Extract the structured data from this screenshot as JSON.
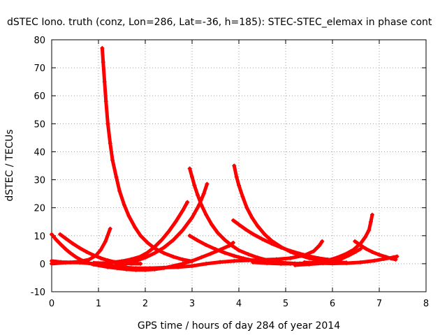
{
  "chart_data": {
    "type": "scatter",
    "title": "dSTEC Iono. truth (conz, Lon=286, Lat=-36, h=185): STEC-STEC_elemax in phase cont",
    "xlabel": "GPS time / hours of day 284 of year 2014",
    "ylabel": "dSTEC  / TECUs",
    "xlim": [
      0,
      8
    ],
    "ylim": [
      -10,
      80
    ],
    "xticks": [
      "0",
      "1",
      "2",
      "3",
      "4",
      "5",
      "6",
      "7",
      "8"
    ],
    "yticks": [
      "-10",
      "0",
      "10",
      "20",
      "30",
      "40",
      "50",
      "60",
      "70",
      "80"
    ],
    "grid": true,
    "marker": "plus",
    "color": "#ff0000",
    "series": [
      {
        "points": [
          [
            1.08,
            77
          ],
          [
            1.1,
            72
          ],
          [
            1.13,
            65
          ],
          [
            1.16,
            58
          ],
          [
            1.2,
            50
          ],
          [
            1.25,
            43
          ],
          [
            1.3,
            37
          ],
          [
            1.38,
            31
          ],
          [
            1.45,
            26
          ],
          [
            1.55,
            21
          ],
          [
            1.65,
            17
          ],
          [
            1.78,
            13
          ],
          [
            1.9,
            10
          ],
          [
            2.05,
            7.5
          ],
          [
            2.2,
            5.5
          ],
          [
            2.4,
            3.8
          ],
          [
            2.6,
            2.5
          ],
          [
            2.8,
            1.5
          ],
          [
            3.0,
            0.9
          ]
        ]
      },
      {
        "points": [
          [
            0,
            10.5
          ],
          [
            0.1,
            8.5
          ],
          [
            0.2,
            6.8
          ],
          [
            0.3,
            5.2
          ],
          [
            0.4,
            3.8
          ],
          [
            0.5,
            2.6
          ],
          [
            0.6,
            1.6
          ],
          [
            0.7,
            0.8
          ],
          [
            0.8,
            0.2
          ],
          [
            0.9,
            -0.3
          ],
          [
            1.0,
            -0.6
          ],
          [
            1.2,
            -1.2
          ],
          [
            1.4,
            -1.6
          ],
          [
            1.6,
            -2
          ],
          [
            1.8,
            -2.2
          ],
          [
            2.0,
            -2.2
          ],
          [
            2.2,
            -2
          ],
          [
            2.4,
            -1.5
          ],
          [
            2.6,
            -0.8
          ],
          [
            2.8,
            0
          ],
          [
            3.0,
            1
          ],
          [
            3.2,
            2.3
          ],
          [
            3.4,
            3.6
          ],
          [
            3.6,
            5
          ],
          [
            3.8,
            6.5
          ],
          [
            3.88,
            7.5
          ]
        ]
      },
      {
        "points": [
          [
            0.18,
            10.5
          ],
          [
            0.3,
            9
          ],
          [
            0.45,
            7.2
          ],
          [
            0.6,
            5.6
          ],
          [
            0.75,
            4.2
          ],
          [
            0.9,
            3
          ],
          [
            1.05,
            2
          ],
          [
            1.2,
            1.2
          ],
          [
            1.35,
            0.6
          ],
          [
            1.5,
            0.2
          ],
          [
            1.7,
            0
          ],
          [
            1.9,
            0
          ]
        ]
      },
      {
        "points": [
          [
            0,
            1
          ],
          [
            0.2,
            0.6
          ],
          [
            0.4,
            0.5
          ],
          [
            0.6,
            0.8
          ],
          [
            0.8,
            1.5
          ],
          [
            0.95,
            3
          ],
          [
            1.05,
            5
          ],
          [
            1.15,
            8
          ],
          [
            1.25,
            12.5
          ]
        ]
      },
      {
        "points": [
          [
            0,
            0
          ],
          [
            0.3,
            0.4
          ],
          [
            0.6,
            0.4
          ],
          [
            0.9,
            0
          ],
          [
            1.2,
            -0.6
          ],
          [
            1.5,
            -1.2
          ],
          [
            1.8,
            -1.6
          ],
          [
            2.1,
            -1.6
          ],
          [
            2.4,
            -1.4
          ],
          [
            2.7,
            -1.2
          ],
          [
            3.0,
            -0.8
          ],
          [
            3.3,
            0
          ],
          [
            3.6,
            0.6
          ],
          [
            3.9,
            1
          ],
          [
            4.2,
            1.2
          ],
          [
            4.5,
            1.4
          ],
          [
            4.8,
            1.6
          ],
          [
            5.1,
            2
          ],
          [
            5.4,
            3
          ],
          [
            5.6,
            4.5
          ],
          [
            5.72,
            6.5
          ],
          [
            5.78,
            8
          ]
        ]
      },
      {
        "points": [
          [
            0.9,
            0.3
          ],
          [
            1.1,
            0.2
          ],
          [
            1.3,
            0.5
          ],
          [
            1.5,
            0.9
          ],
          [
            1.7,
            1.6
          ],
          [
            1.9,
            2.6
          ],
          [
            2.05,
            4
          ],
          [
            2.2,
            6
          ],
          [
            2.35,
            8.5
          ],
          [
            2.5,
            11.5
          ],
          [
            2.65,
            15
          ],
          [
            2.8,
            19
          ],
          [
            2.9,
            22
          ]
        ]
      },
      {
        "points": [
          [
            1.2,
            -1
          ],
          [
            1.4,
            -0.6
          ],
          [
            1.6,
            0
          ],
          [
            1.8,
            1
          ],
          [
            2.0,
            2.2
          ],
          [
            2.2,
            3.8
          ],
          [
            2.4,
            5.8
          ],
          [
            2.6,
            8.5
          ],
          [
            2.8,
            12
          ],
          [
            3.0,
            16.5
          ],
          [
            3.15,
            21
          ],
          [
            3.25,
            25
          ],
          [
            3.32,
            28.5
          ]
        ]
      },
      {
        "points": [
          [
            2.95,
            34
          ],
          [
            3.0,
            31
          ],
          [
            3.05,
            28
          ],
          [
            3.12,
            24.5
          ],
          [
            3.2,
            21
          ],
          [
            3.3,
            17.5
          ],
          [
            3.42,
            14
          ],
          [
            3.55,
            11
          ],
          [
            3.7,
            8.5
          ],
          [
            3.85,
            6.5
          ],
          [
            4.0,
            4.8
          ],
          [
            4.2,
            3.4
          ],
          [
            4.4,
            2.2
          ],
          [
            4.6,
            1.3
          ],
          [
            4.8,
            0.7
          ],
          [
            5.0,
            0.3
          ],
          [
            5.2,
            0.1
          ]
        ]
      },
      {
        "points": [
          [
            2.95,
            10
          ],
          [
            3.1,
            8.5
          ],
          [
            3.3,
            6.7
          ],
          [
            3.5,
            5.2
          ],
          [
            3.7,
            3.9
          ],
          [
            3.9,
            2.8
          ],
          [
            4.1,
            1.9
          ],
          [
            4.3,
            1.2
          ],
          [
            4.5,
            0.7
          ],
          [
            4.7,
            0.4
          ],
          [
            4.9,
            0.2
          ],
          [
            5.1,
            0.1
          ]
        ]
      },
      {
        "points": [
          [
            3.9,
            35
          ],
          [
            3.95,
            31
          ],
          [
            4.0,
            28
          ],
          [
            4.08,
            24
          ],
          [
            4.17,
            20
          ],
          [
            4.28,
            16.5
          ],
          [
            4.4,
            13.5
          ],
          [
            4.55,
            10.5
          ],
          [
            4.7,
            8.2
          ],
          [
            4.9,
            6
          ],
          [
            5.1,
            4.3
          ],
          [
            5.3,
            3
          ],
          [
            5.5,
            2
          ],
          [
            5.7,
            1.3
          ],
          [
            5.9,
            0.8
          ],
          [
            6.1,
            0.5
          ],
          [
            6.3,
            0.4
          ]
        ]
      },
      {
        "points": [
          [
            3.88,
            15.5
          ],
          [
            4.0,
            14
          ],
          [
            4.15,
            12.2
          ],
          [
            4.3,
            10.6
          ],
          [
            4.5,
            8.8
          ],
          [
            4.7,
            7.2
          ],
          [
            4.9,
            5.8
          ],
          [
            5.1,
            4.6
          ],
          [
            5.3,
            3.6
          ],
          [
            5.5,
            2.7
          ],
          [
            5.7,
            2
          ],
          [
            5.9,
            1.5
          ],
          [
            6.1,
            1.2
          ]
        ]
      },
      {
        "points": [
          [
            4.3,
            0.5
          ],
          [
            4.6,
            0.2
          ],
          [
            4.9,
            0
          ],
          [
            5.1,
            0
          ],
          [
            5.3,
            0.1
          ],
          [
            5.5,
            0.3
          ],
          [
            5.7,
            0.6
          ],
          [
            5.9,
            1.2
          ],
          [
            6.1,
            2.2
          ],
          [
            6.3,
            3.6
          ],
          [
            6.45,
            5
          ],
          [
            6.6,
            7.2
          ],
          [
            6.7,
            9.5
          ],
          [
            6.78,
            12
          ],
          [
            6.82,
            15
          ],
          [
            6.85,
            17.5
          ]
        ]
      },
      {
        "points": [
          [
            5.2,
            -0.5
          ],
          [
            5.5,
            -0.2
          ],
          [
            5.8,
            0.2
          ],
          [
            6.0,
            0.8
          ],
          [
            6.2,
            1.8
          ],
          [
            6.35,
            3
          ],
          [
            6.5,
            4.3
          ],
          [
            6.6,
            5.3
          ]
        ]
      },
      {
        "points": [
          [
            6.48,
            8
          ],
          [
            6.6,
            6.6
          ],
          [
            6.72,
            5.3
          ],
          [
            6.85,
            4.2
          ],
          [
            7.0,
            3.2
          ],
          [
            7.15,
            2.4
          ],
          [
            7.25,
            1.9
          ],
          [
            7.35,
            1.5
          ]
        ]
      },
      {
        "points": [
          [
            5.4,
            0.5
          ],
          [
            5.7,
            0.2
          ],
          [
            6.0,
            0.1
          ],
          [
            6.3,
            0.2
          ],
          [
            6.6,
            0.5
          ],
          [
            6.9,
            1.1
          ],
          [
            7.1,
            1.7
          ],
          [
            7.3,
            2.3
          ],
          [
            7.38,
            2.6
          ]
        ]
      }
    ]
  }
}
